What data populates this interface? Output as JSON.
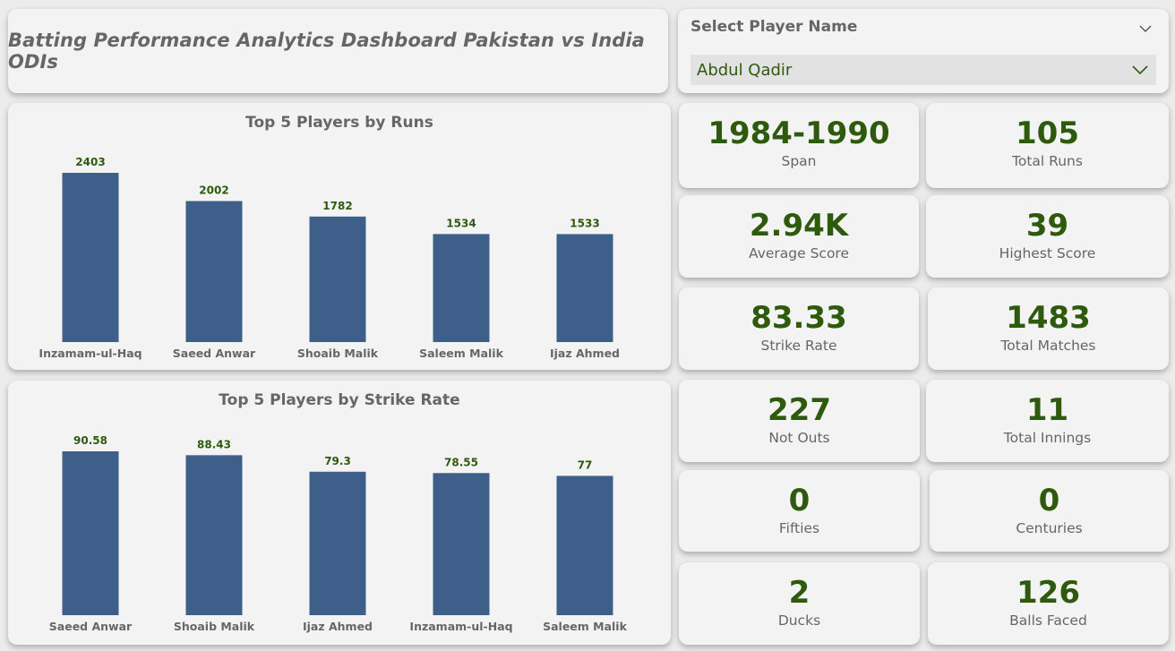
{
  "header": {
    "title": "Batting Performance Analytics Dashboard Pakistan vs India ODIs"
  },
  "slicer": {
    "label": "Select Player Name",
    "selected": "Abdul Qadir"
  },
  "kpis": {
    "span": {
      "value": "1984-1990",
      "label": "Span"
    },
    "total_runs": {
      "value": "105",
      "label": "Total Runs"
    },
    "average_score": {
      "value": "2.94K",
      "label": "Average Score"
    },
    "highest_score": {
      "value": "39",
      "label": "Highest Score"
    },
    "strike_rate": {
      "value": "83.33",
      "label": "Strike Rate"
    },
    "total_matches": {
      "value": "1483",
      "label": "Total Matches"
    },
    "not_outs": {
      "value": "227",
      "label": "Not Outs"
    },
    "total_innings": {
      "value": "11",
      "label": "Total Innings"
    },
    "fifties": {
      "value": "0",
      "label": "Fifties"
    },
    "centuries": {
      "value": "0",
      "label": "Centuries"
    },
    "ducks": {
      "value": "2",
      "label": "Ducks"
    },
    "balls_faced": {
      "value": "126",
      "label": "Balls Faced"
    }
  },
  "colors": {
    "bar": "#3f5f8b",
    "data_label": "#2e5a0e",
    "value": "#2e5a0e",
    "muted_text": "#666666"
  },
  "chart_data": [
    {
      "type": "bar",
      "title": "Top 5 Players by Runs",
      "categories": [
        "Inzamam-ul-Haq",
        "Saeed Anwar",
        "Shoaib Malik",
        "Saleem Malik",
        "Ijaz Ahmed"
      ],
      "values": [
        2403,
        2002,
        1782,
        1534,
        1533
      ],
      "data_labels": [
        "2403",
        "2002",
        "1782",
        "1534",
        "1533"
      ],
      "ylim": [
        0,
        2403
      ],
      "grid": false,
      "legend": "none"
    },
    {
      "type": "bar",
      "title": "Top 5 Players by Strike Rate",
      "categories": [
        "Saeed Anwar",
        "Shoaib Malik",
        "Ijaz Ahmed",
        "Inzamam-ul-Haq",
        "Saleem Malik"
      ],
      "values": [
        90.58,
        88.43,
        79.3,
        78.55,
        77
      ],
      "data_labels": [
        "90.58",
        "88.43",
        "79.3",
        "78.55",
        "77"
      ],
      "ylim": [
        0,
        90.58
      ],
      "grid": false,
      "legend": "none"
    }
  ]
}
